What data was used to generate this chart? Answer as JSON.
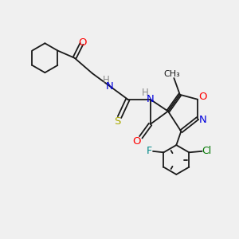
{
  "background_color": "#f0f0f0",
  "bond_color": "#1a1a1a",
  "N_color": "#0000dd",
  "O_color": "#ff0000",
  "S_color": "#aaaa00",
  "F_color": "#008888",
  "Cl_color": "#007700",
  "H_color": "#888888",
  "lw": 1.3,
  "xlim": [
    0.0,
    10.0
  ],
  "ylim": [
    0.5,
    9.5
  ]
}
